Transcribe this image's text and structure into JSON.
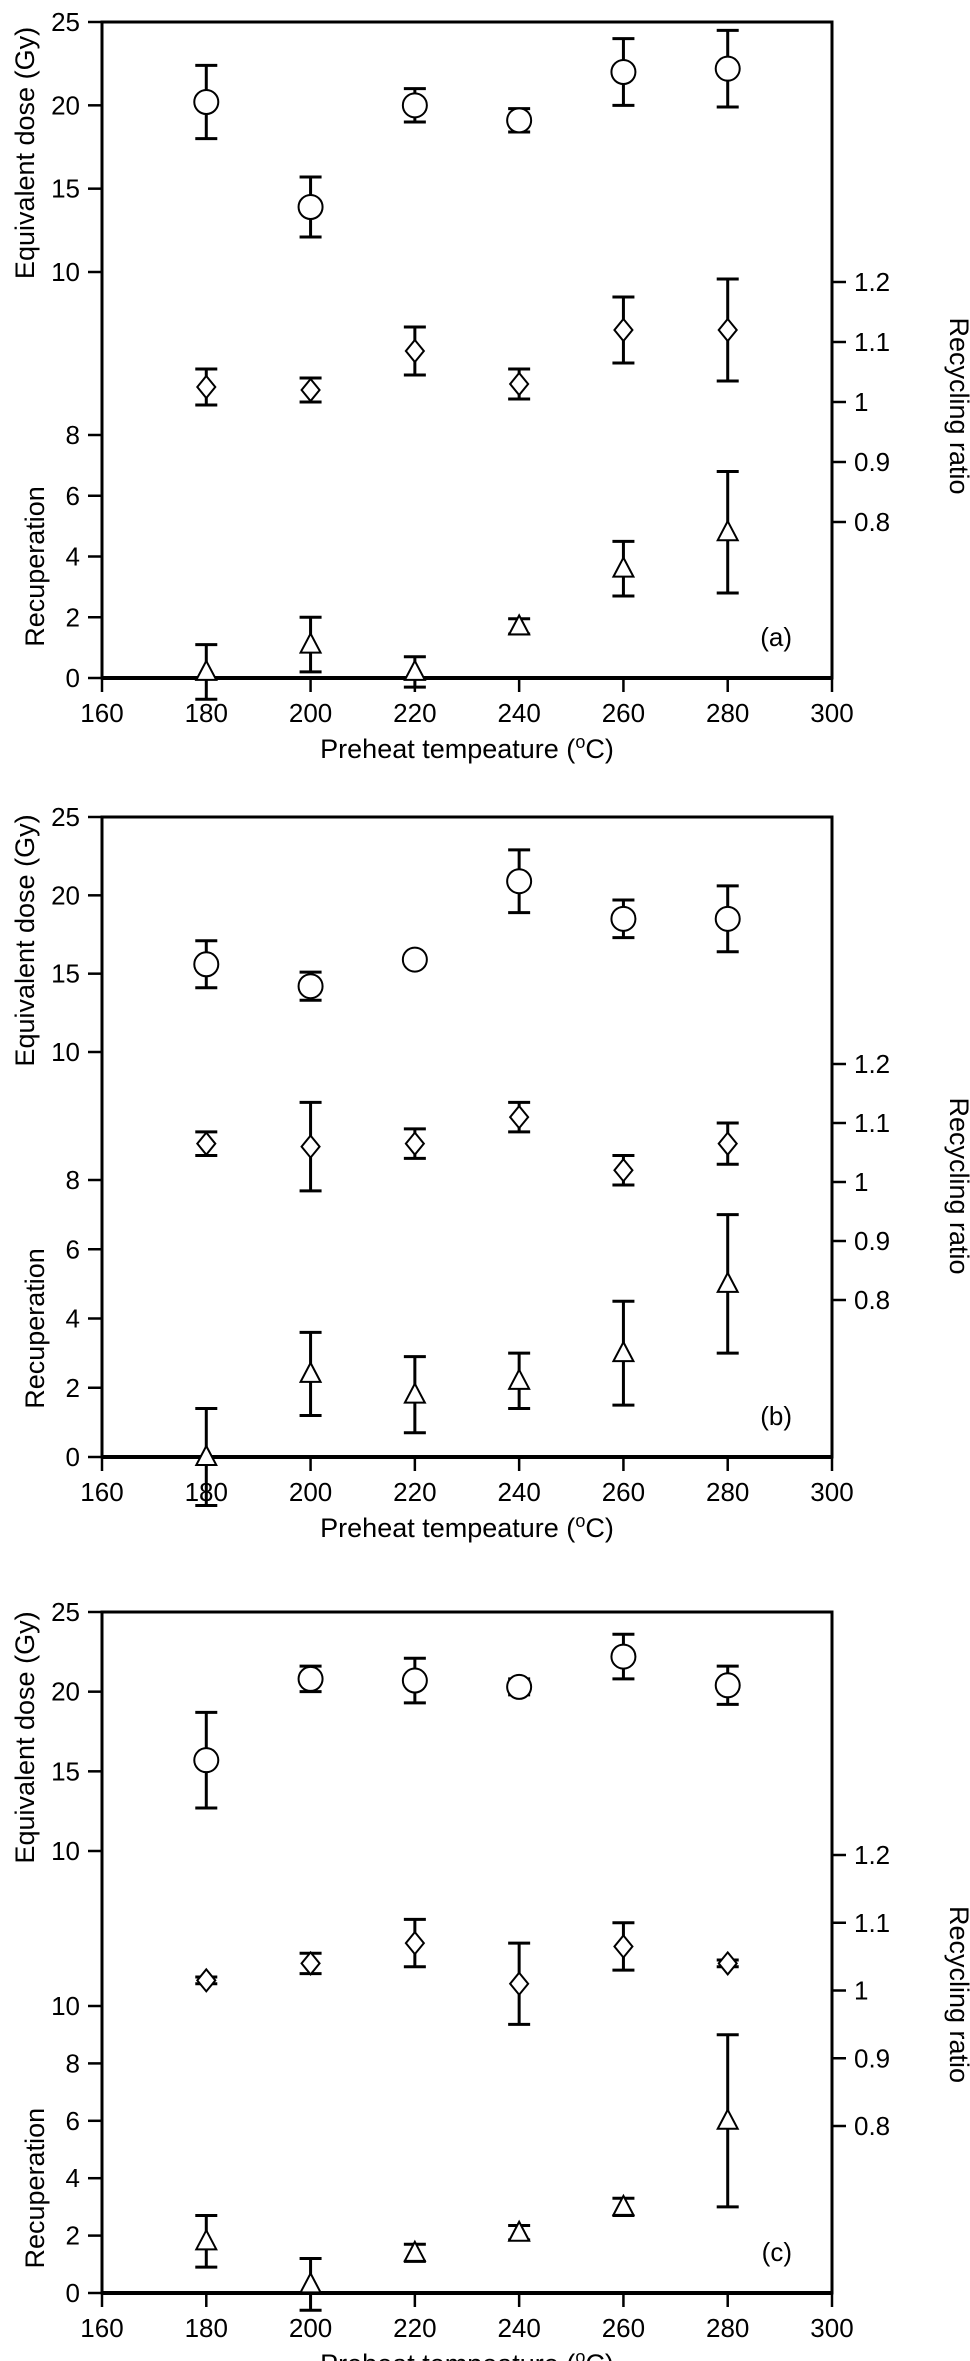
{
  "chart_data": [
    {
      "type": "scatter",
      "panel_label": "(a)",
      "xlabel": "Preheat tempeature (oC)",
      "xlabel_main": "Preheat tempeature (",
      "xlabel_sup": "o",
      "xlabel_end": "C)",
      "xlim": [
        160,
        300
      ],
      "x_ticks": [
        "160",
        "180",
        "200",
        "220",
        "240",
        "260",
        "280",
        "300"
      ],
      "ed": {
        "ylabel": "Equivalent dose (Gy)",
        "ylim": [
          10,
          25
        ],
        "ticks": [
          "10",
          "15",
          "20",
          "25"
        ],
        "points": [
          {
            "x": 180,
            "y": 20.2,
            "err": 2.2
          },
          {
            "x": 200,
            "y": 13.9,
            "err": 1.8
          },
          {
            "x": 220,
            "y": 20.0,
            "err": 1.0
          },
          {
            "x": 240,
            "y": 19.1,
            "err": 0.7
          },
          {
            "x": 260,
            "y": 22.0,
            "err": 2.0
          },
          {
            "x": 280,
            "y": 22.2,
            "err": 2.3
          }
        ]
      },
      "rr": {
        "ylabel": "Recycling ratio",
        "ylim": [
          0.7,
          1.25
        ],
        "ticks": [
          "0.8",
          "0.9",
          "1",
          "1.1",
          "1.2"
        ],
        "points": [
          {
            "x": 180,
            "y": 1.025,
            "err": 0.03
          },
          {
            "x": 200,
            "y": 1.02,
            "err": 0.02
          },
          {
            "x": 220,
            "y": 1.085,
            "err": 0.04
          },
          {
            "x": 240,
            "y": 1.03,
            "err": 0.025
          },
          {
            "x": 260,
            "y": 1.12,
            "err": 0.055
          },
          {
            "x": 280,
            "y": 1.12,
            "err": 0.085
          }
        ]
      },
      "rec": {
        "ylabel": "Recuperation",
        "ylim": [
          0,
          9
        ],
        "ticks": [
          "0",
          "2",
          "4",
          "6",
          "8"
        ],
        "points": [
          {
            "x": 180,
            "y": 0.2,
            "err": 0.9
          },
          {
            "x": 200,
            "y": 1.1,
            "err": 0.9
          },
          {
            "x": 220,
            "y": 0.2,
            "err": 0.5
          },
          {
            "x": 240,
            "y": 1.7,
            "err": 0.25
          },
          {
            "x": 260,
            "y": 3.6,
            "err": 0.9
          },
          {
            "x": 280,
            "y": 4.8,
            "err": 2.0
          }
        ]
      }
    },
    {
      "type": "scatter",
      "panel_label": "(b)",
      "xlabel": "Preheat tempeature (oC)",
      "xlabel_main": "Preheat tempeature (",
      "xlabel_sup": "o",
      "xlabel_end": "C)",
      "xlim": [
        160,
        300
      ],
      "x_ticks": [
        "160",
        "180",
        "200",
        "220",
        "240",
        "260",
        "280",
        "300"
      ],
      "ed": {
        "ylabel": "Equivalent dose (Gy)",
        "ylim": [
          10,
          25
        ],
        "ticks": [
          "10",
          "15",
          "20",
          "25"
        ],
        "points": [
          {
            "x": 180,
            "y": 15.6,
            "err": 1.5
          },
          {
            "x": 200,
            "y": 14.2,
            "err": 0.9
          },
          {
            "x": 220,
            "y": 15.9,
            "err": 0.3
          },
          {
            "x": 240,
            "y": 20.9,
            "err": 2.0
          },
          {
            "x": 260,
            "y": 18.5,
            "err": 1.2
          },
          {
            "x": 280,
            "y": 18.5,
            "err": 2.1
          }
        ]
      },
      "rr": {
        "ylabel": "Recycling ratio",
        "ylim": [
          0.7,
          1.25
        ],
        "ticks": [
          "0.8",
          "0.9",
          "1",
          "1.1",
          "1.2"
        ],
        "points": [
          {
            "x": 180,
            "y": 1.065,
            "err": 0.02
          },
          {
            "x": 200,
            "y": 1.06,
            "err": 0.075
          },
          {
            "x": 220,
            "y": 1.065,
            "err": 0.025
          },
          {
            "x": 240,
            "y": 1.11,
            "err": 0.025
          },
          {
            "x": 260,
            "y": 1.02,
            "err": 0.025
          },
          {
            "x": 280,
            "y": 1.065,
            "err": 0.035
          }
        ]
      },
      "rec": {
        "ylabel": "Recuperation",
        "ylim": [
          0,
          9
        ],
        "ticks": [
          "0",
          "2",
          "4",
          "6",
          "8"
        ],
        "points": [
          {
            "x": 180,
            "y": 0.0,
            "err": 1.4
          },
          {
            "x": 200,
            "y": 2.4,
            "err": 1.2
          },
          {
            "x": 220,
            "y": 1.8,
            "err": 1.1
          },
          {
            "x": 240,
            "y": 2.2,
            "err": 0.8
          },
          {
            "x": 260,
            "y": 3.0,
            "err": 1.5
          },
          {
            "x": 280,
            "y": 5.0,
            "err": 2.0
          }
        ]
      }
    },
    {
      "type": "scatter",
      "panel_label": "(c)",
      "xlabel": "Preheat tempeature (oC)",
      "xlabel_main": "Preheat tempeature (",
      "xlabel_sup": "o",
      "xlabel_end": "C)",
      "xlim": [
        160,
        300
      ],
      "x_ticks": [
        "160",
        "180",
        "200",
        "220",
        "240",
        "260",
        "280",
        "300"
      ],
      "ed": {
        "ylabel": "Equivalent dose (Gy)",
        "ylim": [
          10,
          25
        ],
        "ticks": [
          "10",
          "15",
          "20",
          "25"
        ],
        "points": [
          {
            "x": 180,
            "y": 15.7,
            "err": 3.0
          },
          {
            "x": 200,
            "y": 20.8,
            "err": 0.8
          },
          {
            "x": 220,
            "y": 20.7,
            "err": 1.4
          },
          {
            "x": 240,
            "y": 20.3,
            "err": 0.5
          },
          {
            "x": 260,
            "y": 22.2,
            "err": 1.4
          },
          {
            "x": 280,
            "y": 20.4,
            "err": 1.2
          }
        ]
      },
      "rr": {
        "ylabel": "Recycling ratio",
        "ylim": [
          0.7,
          1.25
        ],
        "ticks": [
          "0.8",
          "0.9",
          "1",
          "1.1",
          "1.2"
        ],
        "points": [
          {
            "x": 180,
            "y": 1.015,
            "err": 0.005
          },
          {
            "x": 200,
            "y": 1.04,
            "err": 0.015
          },
          {
            "x": 220,
            "y": 1.07,
            "err": 0.035
          },
          {
            "x": 240,
            "y": 1.01,
            "err": 0.06
          },
          {
            "x": 260,
            "y": 1.065,
            "err": 0.035
          },
          {
            "x": 280,
            "y": 1.04,
            "err": 0.005
          }
        ]
      },
      "rec": {
        "ylabel": "Recuperation",
        "ylim": [
          0,
          11
        ],
        "ticks": [
          "0",
          "2",
          "4",
          "6",
          "8",
          "10"
        ],
        "points": [
          {
            "x": 180,
            "y": 1.8,
            "err": 0.9
          },
          {
            "x": 200,
            "y": 0.3,
            "err": 0.9
          },
          {
            "x": 220,
            "y": 1.4,
            "err": 0.3
          },
          {
            "x": 240,
            "y": 2.1,
            "err": 0.25
          },
          {
            "x": 260,
            "y": 3.0,
            "err": 0.3
          },
          {
            "x": 280,
            "y": 6.0,
            "err": 3.0
          }
        ]
      }
    }
  ]
}
